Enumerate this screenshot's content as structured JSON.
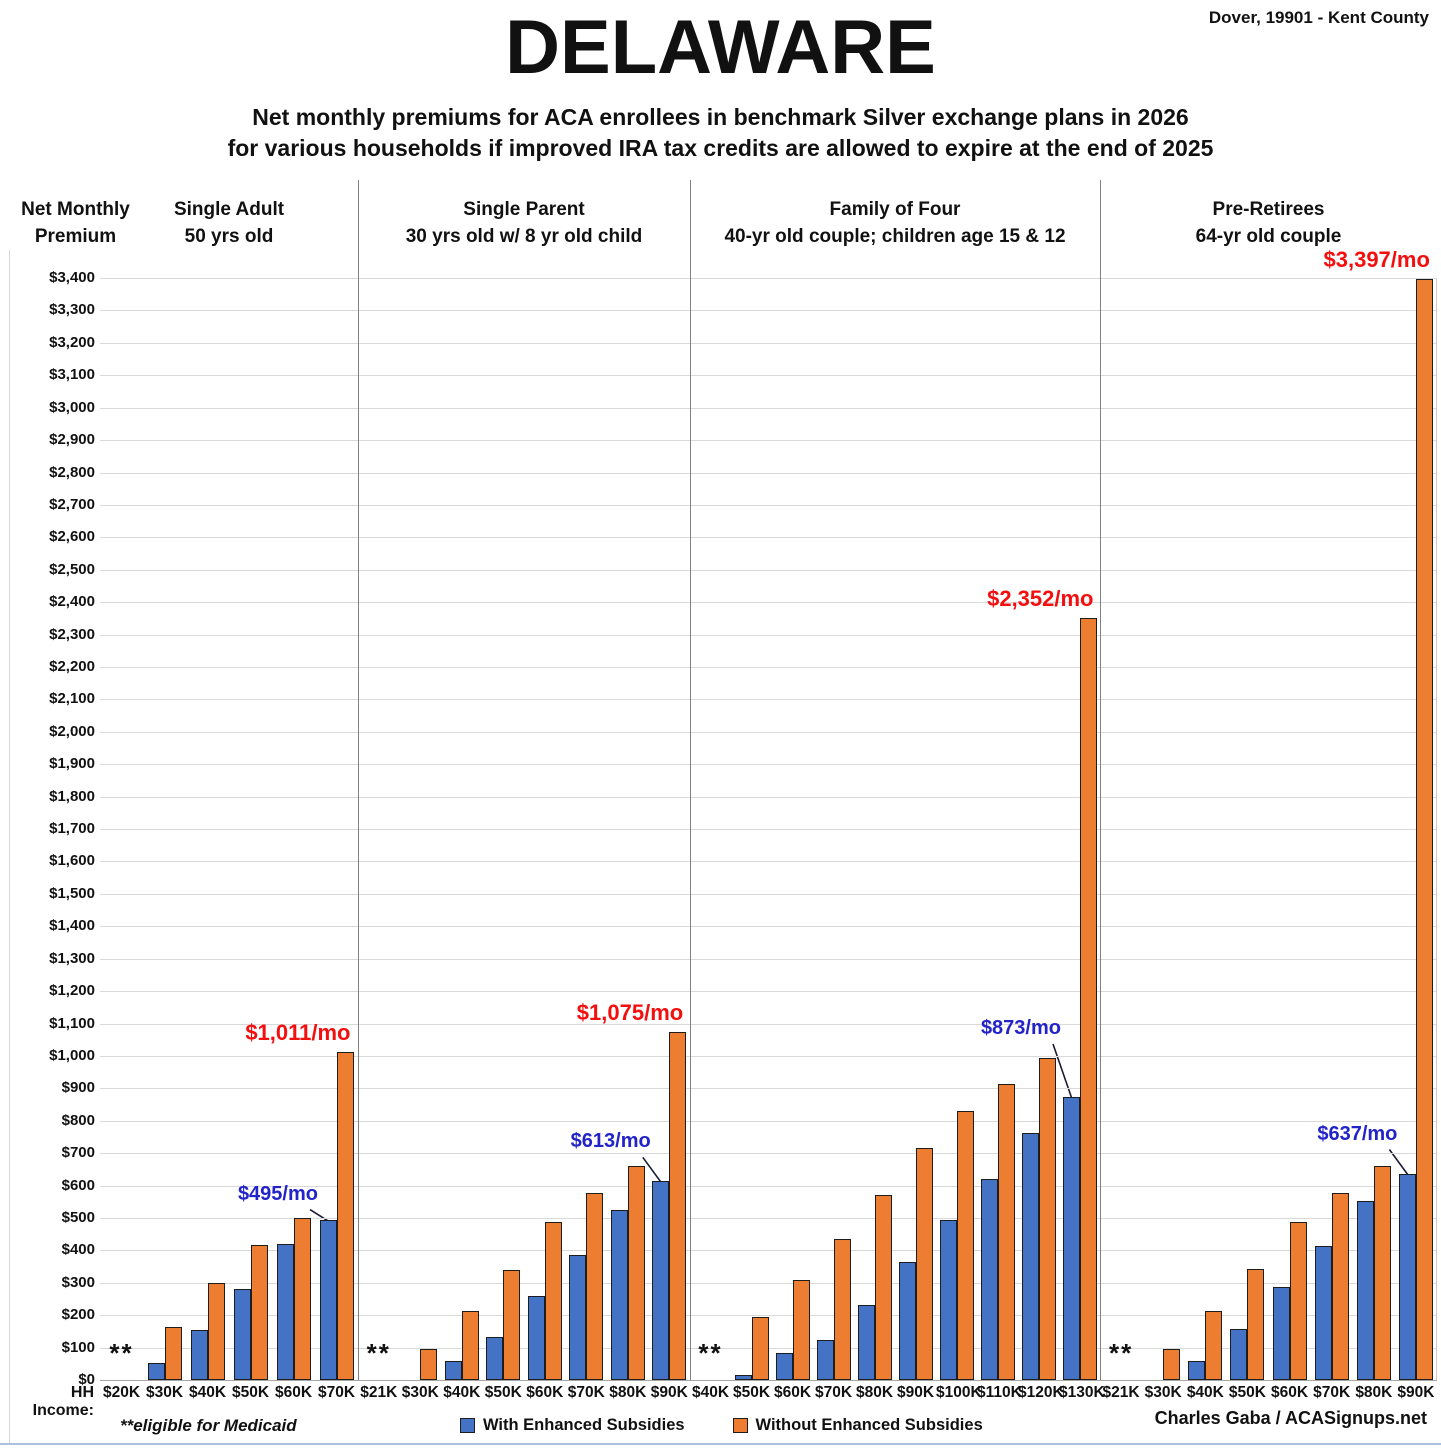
{
  "header": {
    "location": "Dover, 19901 - Kent County",
    "title": "DELAWARE",
    "subtitle_line1": "Net monthly premiums for ACA enrollees in benchmark Silver exchange plans in 2026",
    "subtitle_line2": "for various households if improved IRA tax credits are allowed to expire at the end of 2025"
  },
  "axis": {
    "y_header_line1": "Net Monthly",
    "y_header_line2": "Premium",
    "x_label": "HH Income:",
    "y_tick_prefix": "$",
    "y_min": 0,
    "y_max": 3400,
    "y_step": 100
  },
  "legend": [
    {
      "label": "With Enhanced Subsidies",
      "color": "#4472C4"
    },
    {
      "label": "Without Enhanced Subsidies",
      "color": "#ED7D31"
    }
  ],
  "footnote": "**eligible for Medicaid",
  "medicaid_marker": "**",
  "credit": "Charles Gaba / ACASignups.net",
  "colors": {
    "with_subsidies": "#4472C4",
    "without_subsidies": "#ED7D31",
    "red_label": "#f40f0f",
    "blue_label": "#2223c9",
    "gridline": "#d9d9d9"
  },
  "chart_data": {
    "type": "bar",
    "ylim": [
      0,
      3400
    ],
    "grid": true,
    "legend_position": "bottom",
    "series_names": [
      "With Enhanced Subsidies",
      "Without Enhanced Subsidies"
    ],
    "panels": [
      {
        "title_line1": "Single Adult",
        "title_line2": "50 yrs old",
        "categories": [
          "$20K",
          "$30K",
          "$40K",
          "$50K",
          "$60K",
          "$70K"
        ],
        "medicaid": [
          true,
          false,
          false,
          false,
          false,
          false
        ],
        "with_subsidies": [
          null,
          52,
          155,
          281,
          421,
          495
        ],
        "without_subsidies": [
          null,
          165,
          298,
          417,
          499,
          1011
        ],
        "annotations": [
          {
            "text": "$1,011/mo",
            "color": "red",
            "series": "without",
            "index": 5,
            "dy": 6,
            "leader": false
          },
          {
            "text": "$495/mo",
            "color": "blue",
            "series": "with",
            "index": 5,
            "dy": 14,
            "leader": true
          }
        ]
      },
      {
        "title_line1": "Single Parent",
        "title_line2": "30 yrs old w/ 8 yr old child",
        "categories": [
          "$21K",
          "$30K",
          "$40K",
          "$50K",
          "$60K",
          "$70K",
          "$80K",
          "$90K"
        ],
        "medicaid": [
          true,
          false,
          false,
          false,
          false,
          false,
          false,
          false
        ],
        "with_subsidies": [
          null,
          null,
          60,
          133,
          260,
          386,
          526,
          613
        ],
        "without_subsidies": [
          null,
          97,
          213,
          341,
          487,
          577,
          659,
          1075
        ],
        "annotations": [
          {
            "text": "$1,075/mo",
            "color": "red",
            "series": "without",
            "index": 7,
            "dy": 6,
            "leader": false
          },
          {
            "text": "$613/mo",
            "color": "blue",
            "series": "with",
            "index": 7,
            "dy": 28,
            "leader": true
          }
        ]
      },
      {
        "title_line1": "Family of Four",
        "title_line2": "40-yr old couple; children age 15 & 12",
        "categories": [
          "$40K",
          "$50K",
          "$60K",
          "$70K",
          "$80K",
          "$90K",
          "$100K",
          "$110K",
          "$120K",
          "$130K"
        ],
        "medicaid": [
          true,
          false,
          false,
          false,
          false,
          false,
          false,
          false,
          false,
          false
        ],
        "with_subsidies": [
          null,
          15,
          84,
          124,
          233,
          364,
          494,
          620,
          761,
          873
        ],
        "without_subsidies": [
          null,
          195,
          308,
          434,
          570,
          717,
          831,
          912,
          995,
          2352
        ],
        "annotations": [
          {
            "text": "$2,352/mo",
            "color": "red",
            "series": "without",
            "index": 9,
            "dy": 6,
            "leader": false
          },
          {
            "text": "$873/mo",
            "color": "blue",
            "series": "with",
            "index": 9,
            "dy": 57,
            "leader": true
          }
        ]
      },
      {
        "title_line1": "Pre-Retirees",
        "title_line2": "64-yr old couple",
        "categories": [
          "$21K",
          "$30K",
          "$40K",
          "$50K",
          "$60K",
          "$70K",
          "$80K",
          "$90K"
        ],
        "medicaid": [
          true,
          false,
          false,
          false,
          false,
          false,
          false,
          false
        ],
        "with_subsidies": [
          null,
          null,
          60,
          158,
          286,
          413,
          551,
          637
        ],
        "without_subsidies": [
          null,
          97,
          213,
          343,
          488,
          577,
          661,
          3397
        ],
        "annotations": [
          {
            "text": "$3,397/mo",
            "color": "red",
            "series": "without",
            "index": 7,
            "dy": 6,
            "leader": false
          },
          {
            "text": "$637/mo",
            "color": "blue",
            "series": "with",
            "index": 7,
            "dy": 28,
            "leader": true
          }
        ]
      }
    ]
  }
}
